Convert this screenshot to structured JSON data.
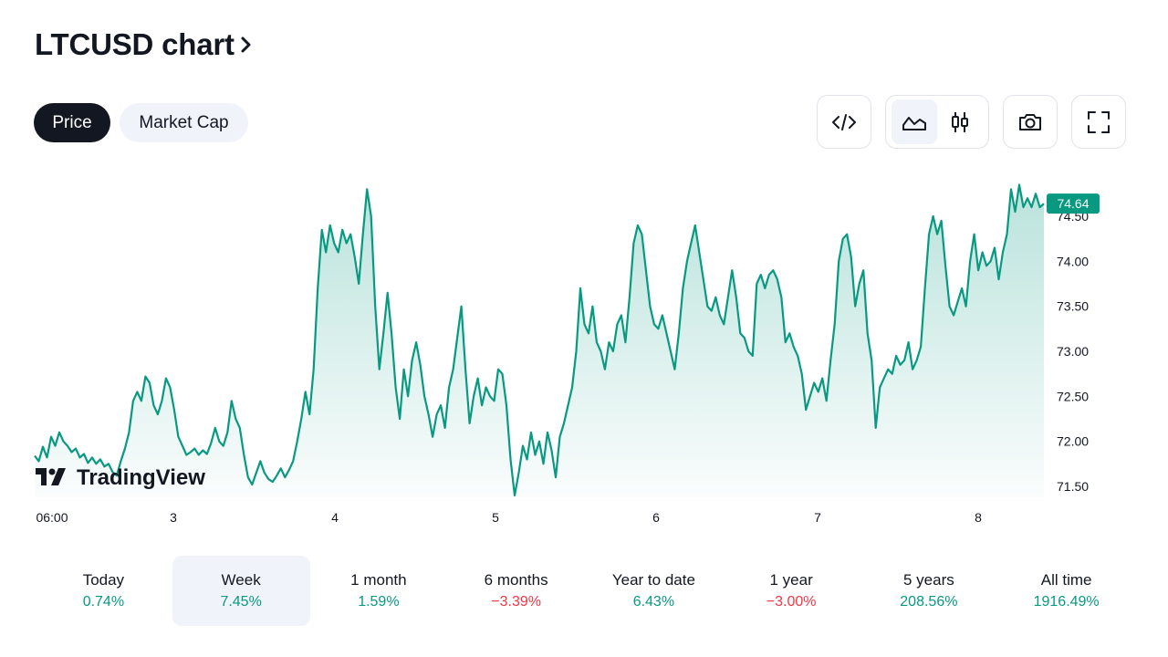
{
  "header": {
    "title": "LTCUSD chart"
  },
  "tabs": [
    {
      "label": "Price",
      "active": true
    },
    {
      "label": "Market Cap",
      "active": false
    }
  ],
  "toolbar": {
    "embed_icon": "code-icon",
    "area_icon": "area-chart-icon",
    "candles_icon": "candlestick-icon",
    "snapshot_icon": "camera-icon",
    "fullscreen_icon": "fullscreen-icon"
  },
  "colors": {
    "line": "#089981",
    "positive": "#089981",
    "negative": "#f23645",
    "dark": "#131722"
  },
  "watermark": "TradingView",
  "chart_data": {
    "type": "area",
    "symbol": "LTCUSD",
    "x_ticks": [
      "06:00",
      "3",
      "4",
      "5",
      "6",
      "7",
      "8"
    ],
    "y_ticks": [
      "71.50",
      "72.00",
      "72.50",
      "73.00",
      "73.50",
      "74.00",
      "74.50"
    ],
    "ylim": [
      71.4,
      74.9
    ],
    "last_price": "74.64",
    "grid": false,
    "series": [
      {
        "values": [
          71.84,
          71.78,
          71.94,
          71.82,
          72.05,
          71.95,
          72.1,
          72.0,
          71.95,
          71.88,
          71.92,
          71.82,
          71.86,
          71.76,
          71.82,
          71.75,
          71.8,
          71.72,
          71.75,
          71.66,
          71.62,
          71.78,
          71.92,
          72.1,
          72.45,
          72.55,
          72.45,
          72.72,
          72.65,
          72.4,
          72.3,
          72.45,
          72.7,
          72.6,
          72.35,
          72.05,
          71.95,
          71.85,
          71.88,
          71.92,
          71.85,
          71.9,
          71.86,
          71.98,
          72.15,
          72.0,
          71.95,
          72.1,
          72.45,
          72.25,
          72.15,
          71.85,
          71.6,
          71.52,
          71.65,
          71.78,
          71.65,
          71.58,
          71.55,
          71.62,
          71.7,
          71.6,
          71.68,
          71.78,
          72.0,
          72.25,
          72.55,
          72.3,
          72.8,
          73.7,
          74.35,
          74.1,
          74.4,
          74.2,
          74.1,
          74.35,
          74.2,
          74.3,
          74.05,
          73.75,
          74.3,
          74.8,
          74.5,
          73.5,
          72.8,
          73.2,
          73.65,
          73.2,
          72.6,
          72.25,
          72.8,
          72.5,
          72.9,
          73.1,
          72.85,
          72.5,
          72.3,
          72.05,
          72.3,
          72.4,
          72.15,
          72.6,
          72.8,
          73.15,
          73.5,
          72.8,
          72.2,
          72.5,
          72.7,
          72.4,
          72.6,
          72.5,
          72.45,
          72.8,
          72.75,
          72.4,
          71.8,
          71.4,
          71.65,
          71.95,
          71.8,
          72.1,
          71.85,
          72.0,
          71.75,
          72.1,
          71.9,
          71.6,
          72.05,
          72.2,
          72.4,
          72.6,
          73.0,
          73.7,
          73.3,
          73.2,
          73.5,
          73.1,
          73.0,
          72.8,
          73.1,
          73.0,
          73.3,
          73.4,
          73.1,
          73.6,
          74.2,
          74.4,
          74.3,
          73.9,
          73.5,
          73.3,
          73.25,
          73.4,
          73.2,
          73.0,
          72.8,
          73.2,
          73.7,
          74.0,
          74.2,
          74.4,
          74.1,
          73.8,
          73.5,
          73.45,
          73.6,
          73.4,
          73.3,
          73.6,
          73.9,
          73.6,
          73.2,
          73.15,
          73.0,
          72.95,
          73.75,
          73.85,
          73.7,
          73.85,
          73.9,
          73.8,
          73.6,
          73.1,
          73.2,
          73.05,
          72.95,
          72.75,
          72.35,
          72.5,
          72.65,
          72.55,
          72.7,
          72.45,
          72.9,
          73.3,
          74.0,
          74.25,
          74.3,
          74.05,
          73.5,
          73.75,
          73.9,
          73.2,
          72.9,
          72.15,
          72.6,
          72.7,
          72.8,
          72.75,
          72.95,
          72.85,
          72.9,
          73.1,
          72.8,
          72.9,
          73.05,
          73.7,
          74.3,
          74.5,
          74.3,
          74.45,
          73.95,
          73.5,
          73.4,
          73.55,
          73.7,
          73.5,
          74.0,
          74.3,
          73.9,
          74.1,
          73.95,
          74.0,
          74.15,
          73.8,
          74.1,
          74.3,
          74.8,
          74.55,
          74.85,
          74.6,
          74.7,
          74.6,
          74.75,
          74.6,
          74.64
        ]
      }
    ]
  },
  "periods": [
    {
      "label": "Today",
      "value": "0.74%",
      "sign": "pos"
    },
    {
      "label": "Week",
      "value": "7.45%",
      "sign": "pos",
      "selected": true
    },
    {
      "label": "1 month",
      "value": "1.59%",
      "sign": "pos"
    },
    {
      "label": "6 months",
      "value": "−3.39%",
      "sign": "neg"
    },
    {
      "label": "Year to date",
      "value": "6.43%",
      "sign": "pos"
    },
    {
      "label": "1 year",
      "value": "−3.00%",
      "sign": "neg"
    },
    {
      "label": "5 years",
      "value": "208.56%",
      "sign": "pos"
    },
    {
      "label": "All time",
      "value": "1916.49%",
      "sign": "pos"
    }
  ]
}
